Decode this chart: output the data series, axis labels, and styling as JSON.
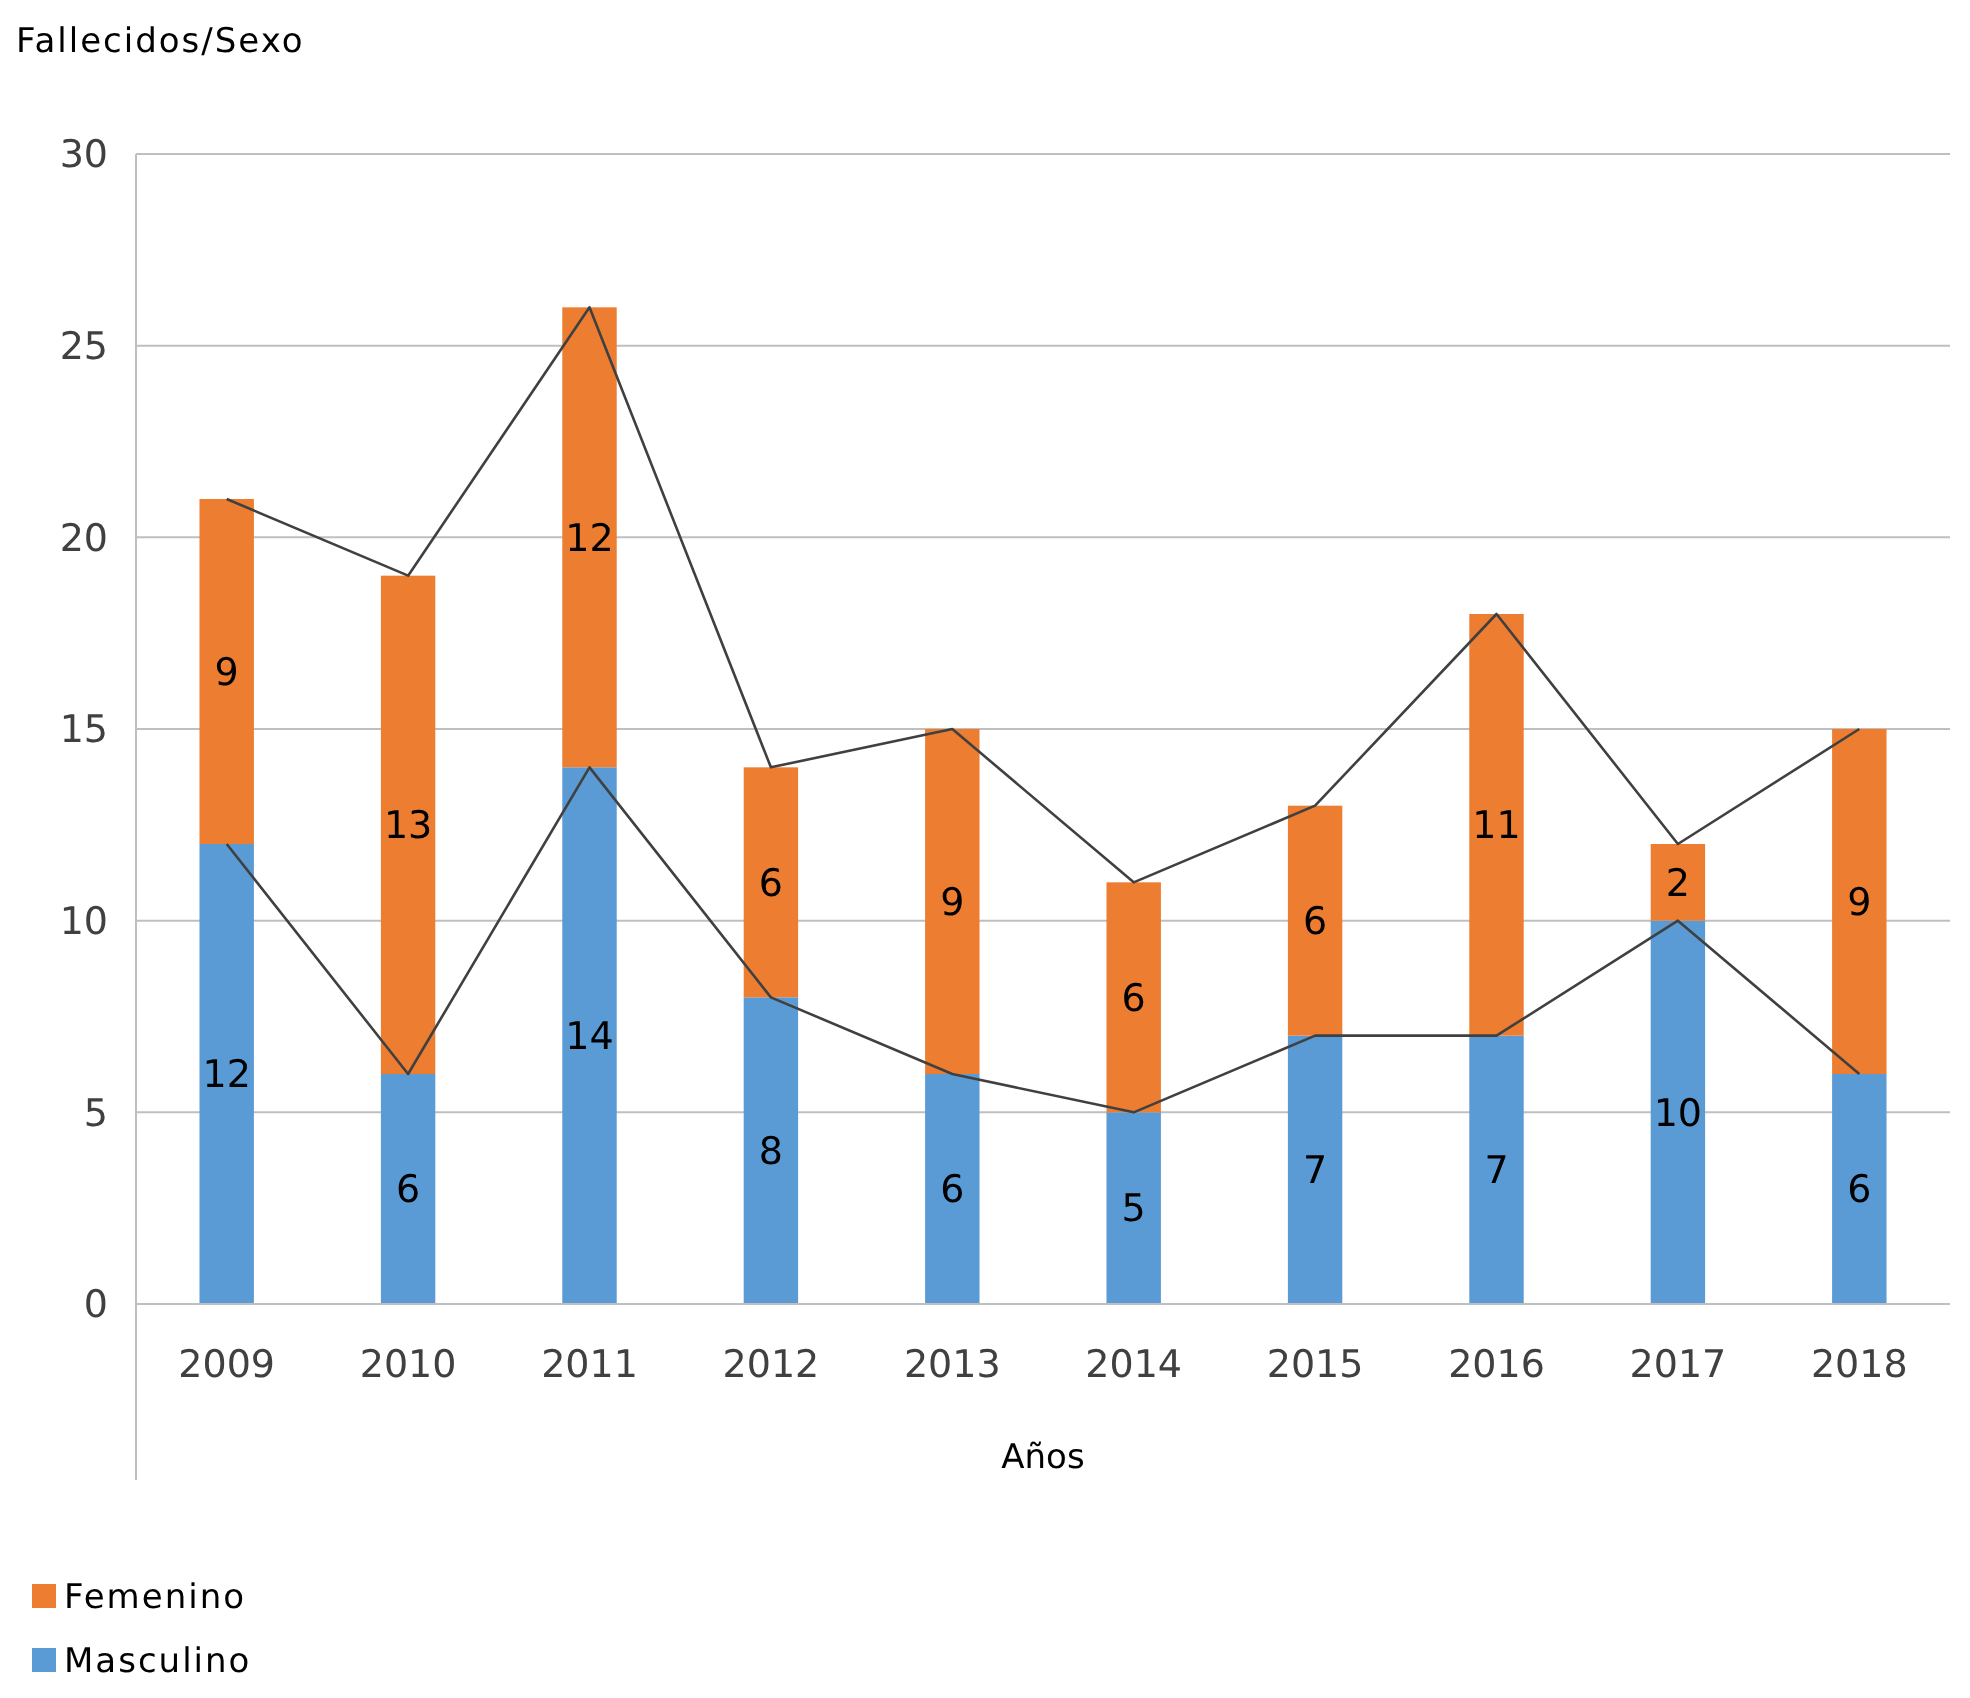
{
  "chart_data": {
    "type": "bar",
    "ylabel": "Fallecidos/Sexo",
    "xlabel": "Años",
    "categories": [
      "2009",
      "2010",
      "2011",
      "2012",
      "2013",
      "2014",
      "2015",
      "2016",
      "2017",
      "2018"
    ],
    "stacked": true,
    "data_labels": true,
    "grid": "y",
    "legend": "bottom left",
    "ylim": [
      0,
      30
    ],
    "yticks": [
      0,
      5,
      10,
      15,
      20,
      25,
      30
    ],
    "series": [
      {
        "name": "Masculino",
        "color": "#5b9bd5",
        "values": [
          12,
          6,
          14,
          8,
          6,
          5,
          7,
          7,
          10,
          6
        ]
      },
      {
        "name": "Femenino",
        "color": "#ed7d31",
        "values": [
          9,
          13,
          12,
          6,
          9,
          6,
          6,
          11,
          2,
          9
        ]
      },
      {
        "type": "line",
        "color": "#404040",
        "marker": "none",
        "values": [
          12,
          6,
          14,
          8,
          6,
          5,
          7,
          7,
          10,
          6
        ],
        "value_labels": [
          null,
          null,
          null,
          null,
          null,
          null,
          null,
          null,
          null,
          null
        ]
      },
      {
        "type": "line",
        "color": "#404040",
        "marker": "none",
        "values": [
          21,
          19,
          26,
          14,
          15,
          11,
          13,
          18,
          12,
          15
        ],
        "value_labels": [
          null,
          null,
          null,
          null,
          null,
          null,
          null,
          null,
          null,
          null
        ]
      }
    ]
  }
}
